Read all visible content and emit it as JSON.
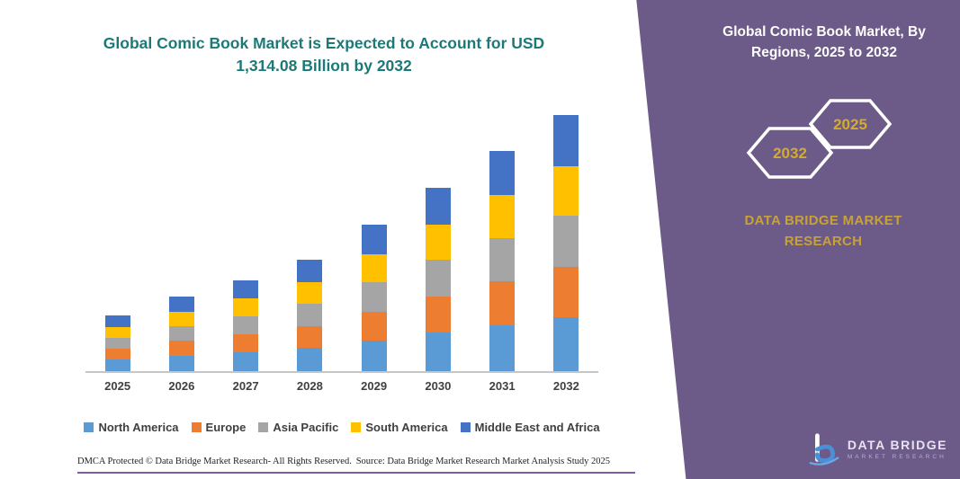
{
  "header": {
    "title_line1": "Global Comic Book Market is Expected to Account for USD",
    "title_line2": "1,314.08 Billion by 2032"
  },
  "panel": {
    "title": "Global Comic Book Market, By Regions, 2025 to 2032",
    "hex_back_label": "2025",
    "hex_front_label": "2032",
    "brand": "DATA BRIDGE MARKET RESEARCH",
    "logo_text": "DATA BRIDGE",
    "logo_subtext": "MARKET RESEARCH",
    "bg_color": "#6c5a88",
    "accent_gold": "#c8a234"
  },
  "footer": {
    "dmca": "DMCA Protected © Data Bridge Market Research-  All Rights Reserved.",
    "source": "Source: Data Bridge Market Research  Market Analysis Study 2025"
  },
  "chart_data": {
    "type": "bar",
    "stacked": true,
    "title": "Global Comic Book Market is Expected to Account for USD 1,314.08 Billion by 2032",
    "unit": "USD Billion",
    "categories": [
      "2025",
      "2026",
      "2027",
      "2028",
      "2029",
      "2030",
      "2031",
      "2032"
    ],
    "series": [
      {
        "name": "North America",
        "color": "#5B9BD5",
        "values": [
          60,
          80,
          98,
          120,
          158,
          198,
          237,
          276
        ]
      },
      {
        "name": "Europe",
        "color": "#ED7D31",
        "values": [
          55,
          75,
          92,
          112,
          148,
          186,
          222,
          259
        ]
      },
      {
        "name": "Asia Pacific",
        "color": "#A5A5A5",
        "values": [
          55,
          75,
          92,
          113,
          150,
          188,
          225,
          262
        ]
      },
      {
        "name": "South America",
        "color": "#FFC000",
        "values": [
          55,
          75,
          90,
          110,
          145,
          182,
          218,
          254
        ]
      },
      {
        "name": "Middle East and Africa",
        "color": "#4472C4",
        "values": [
          60,
          76,
          95,
          116,
          151,
          189,
          226,
          263.08
        ]
      }
    ],
    "totals": [
      285,
      381,
      467,
      571,
      752,
      943,
      1128,
      1314.08
    ],
    "ylim": [
      0,
      1400
    ],
    "grid": false,
    "legend_position": "bottom",
    "xlabel": "",
    "ylabel": ""
  }
}
